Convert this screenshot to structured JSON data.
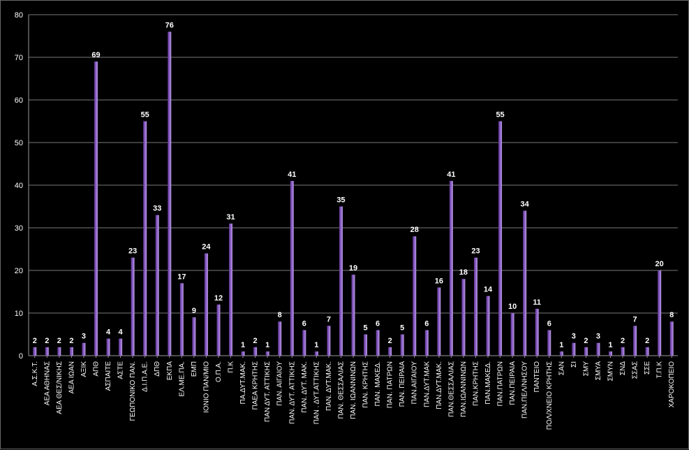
{
  "chart_data": {
    "type": "bar",
    "title": "",
    "xlabel": "",
    "ylabel": "",
    "ylim": [
      0,
      80
    ],
    "yticks": [
      0,
      10,
      20,
      30,
      40,
      50,
      60,
      70,
      80
    ],
    "grid": true,
    "legend": "none",
    "bar_color": "#8a5cc4",
    "categories": [
      "Α.Σ.Κ.Τ.",
      "ΑΕΑ ΑΘΗΝΑΣ",
      "ΑΕΑ ΘΕΣ/ΝΙΚΗΣ",
      "ΑΕΑ ΙΩΑΝ",
      "ΑΞΙΚ",
      "ΑΠΘ",
      "ΑΣΠΑΙΤΕ",
      "ΑΣΤΕ",
      "ΓΕΩΠΟΝΙΚΟ ΠΑΝ.",
      "Δ.Ι.Π.Α.Ε.",
      "ΔΠΘ",
      "ΕΚΠΑ",
      "ΕΛ.ΜΕ.ΠΑ.",
      "ΕΜΠ",
      "ΙΟΝΙΟ ΠΑΝ/ΜΙΟ",
      "Ο.Π.Α.",
      "Π.Κ",
      "ΠΑ.ΔΥΤ.ΜΑΚ.",
      "ΠΑΕΑ ΚΡΗΤΗΣ",
      "ΠΑΝ ΔΥΤ. ΑΤΤΙΚΗΣ",
      "ΠΑΝ. ΑΙΓΑΙΟΥ",
      "ΠΑΝ. ΔΥΤ. ΑΤΤΙΚΗΣ",
      "ΠΑΝ. ΔΥΤ. ΜΑΚ.",
      "ΠΑΝ . ΔΥΤ.ΑΤΤΙΚΗΣ",
      "ΠΑΝ. ΔΥΤ.ΜΑΚ.",
      "ΠΑΝ. ΘΕΣΣΑΛΙΑΣ",
      "ΠΑΝ. ΙΩΑΝΝΙΝΩΝ",
      "ΠΑΝ. ΚΡΗΤΗΣ",
      "ΠΑΝ. ΜΑΚΕΔ.",
      "ΠΑΝ. ΠΑΤΡΩΝ",
      "ΠΑΝ. ΠΕΙΡΑΙΑ",
      "ΠΑΝ.ΑΙΓΑΙΟΥ",
      "ΠΑΝ.ΔΥΤ.ΜΑΚ",
      "ΠΑΝ.ΔΥΤ.ΜΑΚ.",
      "ΠΑΝ.ΘΕΣΣΑΛΙΑΣ",
      "ΠΑΝ.ΙΩΑΝΝΙΝΩΝ",
      "ΠΑΝ.ΚΡΗΤΗΣ",
      "ΠΑΝ.ΜΑΚΕΔ.",
      "ΠΑΝ.ΠΑΤΡΩΝ",
      "ΠΑΝ.ΠΕΙΡΑΙΑ",
      "ΠΑΝ.ΠΕΛ/ΝΗΣΟΥ",
      "ΠΑΝΤΕΙΟ",
      "ΠΟΛ/ΧΝΕΙΟ ΚΡΗΤΗΣ",
      "ΣΑΝ",
      "ΣΙ",
      "ΣΜΥ",
      "ΣΜΥΑ",
      "ΣΜΥΝ",
      "ΣΝΔ",
      "ΣΣΑΣ",
      "ΣΣΕ",
      "Τ.Π.Κ",
      "ΧΑΡΟΚΟΠΕΙΟ"
    ],
    "values": [
      2,
      2,
      2,
      2,
      3,
      69,
      4,
      4,
      23,
      55,
      33,
      76,
      17,
      9,
      24,
      12,
      31,
      1,
      2,
      1,
      8,
      41,
      6,
      1,
      7,
      35,
      19,
      5,
      6,
      2,
      5,
      28,
      6,
      16,
      41,
      18,
      23,
      14,
      55,
      10,
      34,
      11,
      6,
      1,
      3,
      2,
      3,
      1,
      2,
      7,
      2,
      20,
      8
    ]
  }
}
